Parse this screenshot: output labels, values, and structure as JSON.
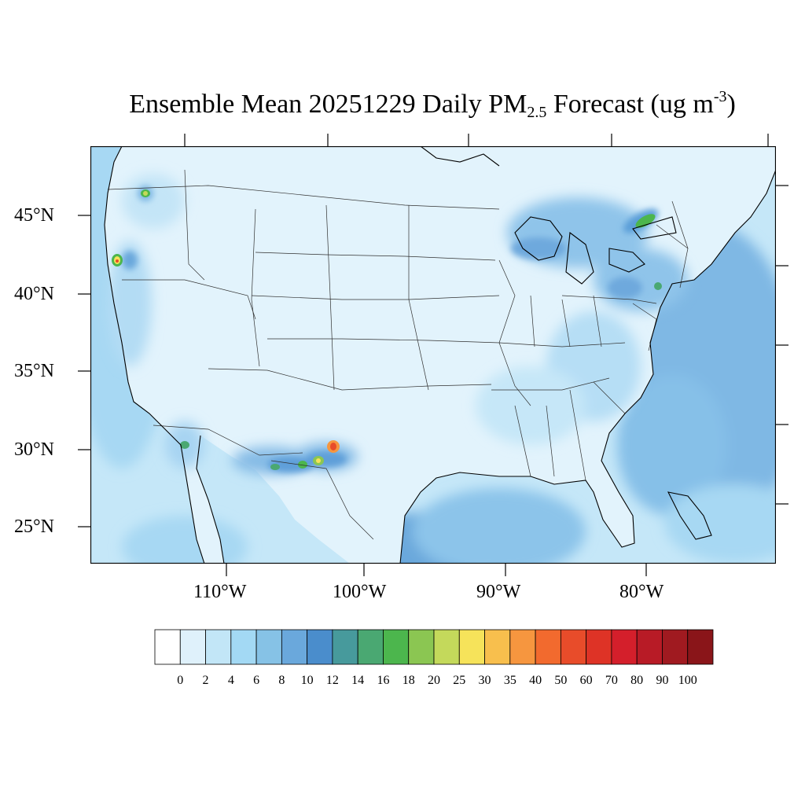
{
  "title": {
    "prefix": "Ensemble Mean 20251229 Daily PM",
    "subscript": "2.5",
    "middle": " Forecast (ug m",
    "superscript": "-3",
    "suffix": ")"
  },
  "lat_labels": [
    "45°N",
    "40°N",
    "35°N",
    "30°N",
    "25°N"
  ],
  "lon_labels": [
    "110°W",
    "100°W",
    "90°W",
    "80°W"
  ],
  "colorbar": {
    "labels": [
      "0",
      "2",
      "4",
      "6",
      "8",
      "10",
      "12",
      "14",
      "16",
      "18",
      "20",
      "25",
      "30",
      "35",
      "40",
      "50",
      "60",
      "70",
      "80",
      "90",
      "100"
    ],
    "colors": [
      "#ffffff",
      "#dff1fb",
      "#c2e6f7",
      "#a3d9f4",
      "#86c2e6",
      "#6aa8dc",
      "#4a8dcc",
      "#479a9c",
      "#4aa872",
      "#4cb64d",
      "#8bc652",
      "#c4d95b",
      "#f6e35a",
      "#f8bf4d",
      "#f6963f",
      "#f26a2e",
      "#e84c2a",
      "#de3326",
      "#d41f2b",
      "#b81b26",
      "#a01a20",
      "#8a1519"
    ]
  },
  "chart_data": {
    "type": "heatmap",
    "title": "Ensemble Mean 20251229 Daily PM2.5 Forecast (ug m-3)",
    "variable": "PM2.5",
    "units": "ug m-3",
    "date": "20251229",
    "lon_range": [
      -125,
      -76
    ],
    "lat_range": [
      22.5,
      49.5
    ],
    "levels": [
      0,
      2,
      4,
      6,
      8,
      10,
      12,
      14,
      16,
      18,
      20,
      25,
      30,
      35,
      40,
      50,
      60,
      70,
      80,
      90,
      100
    ],
    "hotspots": [
      {
        "lon": -122.3,
        "lat": 47.6,
        "value": 18
      },
      {
        "lon": -123.0,
        "lat": 42.1,
        "value": 60
      },
      {
        "lon": -114.5,
        "lat": 30.5,
        "value": 16
      },
      {
        "lon": -102.5,
        "lat": 30.2,
        "value": 45
      },
      {
        "lon": -104.0,
        "lat": 29.2,
        "value": 20
      },
      {
        "lon": -78.5,
        "lat": 44.5,
        "value": 18
      }
    ]
  }
}
